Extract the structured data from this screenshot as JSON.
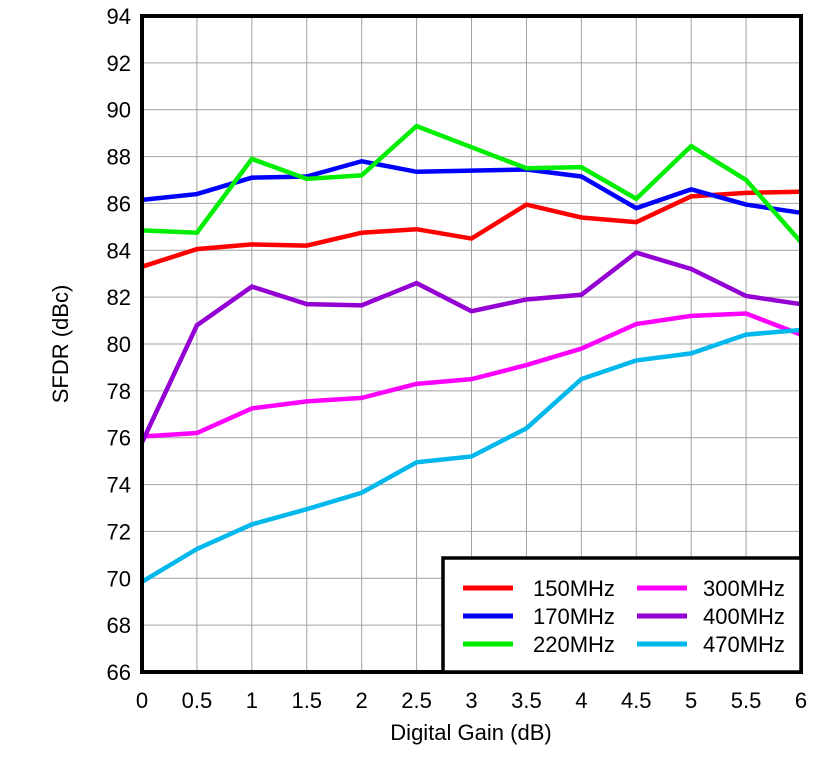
{
  "chart_data": {
    "type": "line",
    "title": "",
    "xlabel": "Digital Gain (dB)",
    "ylabel": "SFDR (dBc)",
    "xlim": [
      0,
      6
    ],
    "ylim": [
      66,
      94
    ],
    "grid": true,
    "legend_position": "inside-bottom-right",
    "x": [
      0,
      0.5,
      1,
      1.5,
      2,
      2.5,
      3,
      3.5,
      4,
      4.5,
      5,
      5.5,
      6
    ],
    "x_tick_labels": [
      "0",
      "0.5",
      "1",
      "1.5",
      "2",
      "2.5",
      "3",
      "3.5",
      "4",
      "4.5",
      "5",
      "5.5",
      "6"
    ],
    "y_ticks": [
      66,
      68,
      70,
      72,
      74,
      76,
      78,
      80,
      82,
      84,
      86,
      88,
      90,
      92,
      94
    ],
    "y_tick_labels": [
      "66",
      "68",
      "70",
      "72",
      "74",
      "76",
      "78",
      "80",
      "82",
      "84",
      "86",
      "88",
      "90",
      "92",
      "94"
    ],
    "series": [
      {
        "name": "150MHz",
        "color": "#FF0000",
        "values": [
          83.3,
          84.05,
          84.25,
          84.2,
          84.75,
          84.9,
          84.5,
          85.95,
          85.4,
          85.2,
          86.3,
          86.45,
          86.5
        ]
      },
      {
        "name": "170MHz",
        "color": "#0000FF",
        "values": [
          86.15,
          86.4,
          87.1,
          87.15,
          87.8,
          87.35,
          87.4,
          87.45,
          87.15,
          85.8,
          86.6,
          85.95,
          85.6
        ]
      },
      {
        "name": "220MHz",
        "color": "#00EE00",
        "values": [
          84.85,
          84.75,
          87.9,
          87.05,
          87.2,
          89.3,
          88.4,
          87.5,
          87.55,
          86.2,
          88.45,
          87.0,
          84.35
        ]
      },
      {
        "name": "300MHz",
        "color": "#FF00FF",
        "values": [
          76.05,
          76.2,
          77.25,
          77.55,
          77.7,
          78.3,
          78.5,
          79.1,
          79.8,
          80.85,
          81.2,
          81.3,
          80.4
        ]
      },
      {
        "name": "400MHz",
        "color": "#9400D3",
        "values": [
          75.8,
          80.8,
          82.45,
          81.7,
          81.65,
          82.6,
          81.4,
          81.9,
          82.1,
          83.9,
          83.2,
          82.05,
          81.7
        ]
      },
      {
        "name": "470MHz",
        "color": "#00B8EC",
        "values": [
          69.85,
          71.25,
          72.3,
          72.95,
          73.65,
          74.95,
          75.2,
          76.4,
          78.5,
          79.3,
          79.6,
          80.4,
          80.6
        ]
      }
    ],
    "colors": {
      "background": "#FFFFFF",
      "axis": "#000000",
      "grid": "#A0A0A0",
      "tick_text": "#000000",
      "legend_border": "#000000",
      "legend_background": "#FFFFFF"
    }
  }
}
